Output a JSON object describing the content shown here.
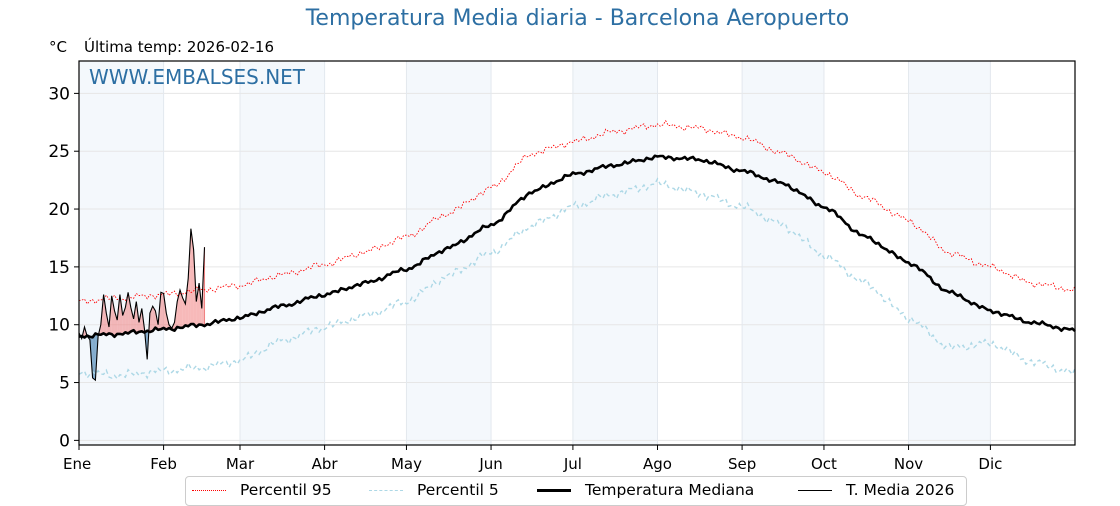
{
  "header": {
    "title": "Temperatura Media diaria - Barcelona Aeropuerto",
    "unit": "°C",
    "last_temp": "Última temp: 2026-02-16",
    "watermark": "WWW.EMBALSES.NET"
  },
  "colors": {
    "title": "#2d6fa3",
    "p95": "#ff0000",
    "p5": "#add8e6",
    "median": "#000000",
    "current": "#000000",
    "above_fill": "#f08080",
    "below_fill": "#4682b4",
    "band": "#f4f8fc"
  },
  "legend": [
    {
      "key": "p95",
      "label": "Percentil 95"
    },
    {
      "key": "p5",
      "label": "Percentil 5"
    },
    {
      "key": "median",
      "label": "Temperatura Mediana"
    },
    {
      "key": "current",
      "label": "T. Media 2026"
    }
  ],
  "chart_data": {
    "type": "line",
    "title": "Temperatura Media diaria - Barcelona Aeropuerto",
    "ylabel": "°C",
    "xlabel": "",
    "ylim": [
      -0.4,
      32.8
    ],
    "xlim_days": [
      1,
      366
    ],
    "yticks": [
      0,
      5,
      10,
      15,
      20,
      25,
      30
    ],
    "month_labels": [
      "Ene",
      "Feb",
      "Mar",
      "Abr",
      "May",
      "Jun",
      "Jul",
      "Ago",
      "Sep",
      "Oct",
      "Nov",
      "Dic"
    ],
    "month_start_days": [
      1,
      32,
      60,
      91,
      121,
      152,
      182,
      213,
      244,
      274,
      305,
      335
    ],
    "shaded_months": [
      "Ene",
      "Mar",
      "May",
      "Jul",
      "Sep",
      "Nov"
    ],
    "grid": true,
    "legend_position": "bottom-center",
    "series_anchors": {
      "note": "approximate values at day-of-year anchors",
      "days": [
        1,
        15,
        32,
        46,
        60,
        75,
        91,
        106,
        121,
        136,
        152,
        167,
        182,
        197,
        213,
        228,
        244,
        259,
        274,
        289,
        305,
        320,
        335,
        350,
        366
      ],
      "p95": [
        12.0,
        12.3,
        12.6,
        13.0,
        13.4,
        14.3,
        15.2,
        16.3,
        17.6,
        19.6,
        21.8,
        24.8,
        25.8,
        26.7,
        27.3,
        27.0,
        26.2,
        24.8,
        23.2,
        21.0,
        19.0,
        16.2,
        15.0,
        13.6,
        13.0
      ],
      "median": [
        9.0,
        9.2,
        9.6,
        10.0,
        10.6,
        11.6,
        12.6,
        13.6,
        14.8,
        16.6,
        18.6,
        21.5,
        23.0,
        23.8,
        24.5,
        24.3,
        23.3,
        22.2,
        20.2,
        17.6,
        15.4,
        12.8,
        11.2,
        10.2,
        9.5
      ],
      "p5": [
        5.9,
        5.6,
        6.0,
        6.3,
        6.9,
        8.6,
        9.8,
        10.8,
        12.0,
        14.2,
        16.2,
        18.6,
        20.2,
        21.3,
        22.2,
        21.4,
        20.2,
        18.6,
        16.0,
        13.6,
        10.6,
        8.0,
        8.4,
        6.8,
        5.8
      ]
    },
    "series": [
      {
        "name": "T. Media 2026",
        "start": "2026-01-01",
        "end": "2026-02-16",
        "values": [
          9.3,
          8.8,
          9.8,
          9.0,
          8.7,
          5.4,
          5.2,
          9.0,
          10.0,
          12.6,
          11.0,
          9.8,
          12.5,
          11.2,
          10.4,
          12.6,
          10.8,
          11.5,
          12.8,
          11.5,
          10.5,
          12.0,
          10.2,
          11.4,
          9.6,
          7.0,
          11.0,
          11.6,
          11.2,
          10.0,
          12.8,
          12.7,
          11.0,
          10.0,
          9.7,
          10.2,
          12.0,
          13.0,
          12.3,
          11.8,
          14.0,
          18.3,
          16.5,
          12.0,
          13.6,
          11.4,
          16.7
        ]
      }
    ]
  }
}
